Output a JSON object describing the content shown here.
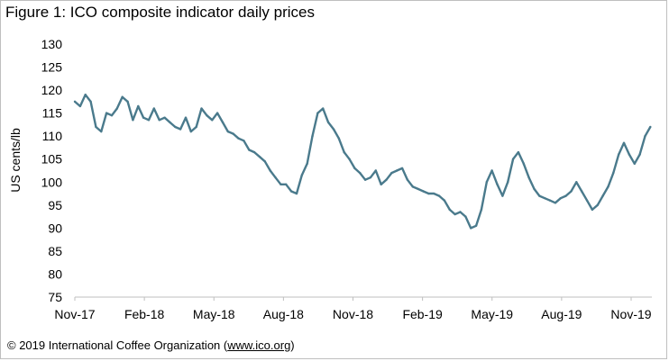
{
  "figure_title": "Figure 1: ICO composite indicator daily prices",
  "footer": {
    "prefix": "© 2019 International Coffee Organization (",
    "link": "www.ico.org",
    "suffix": ")"
  },
  "chart_data": {
    "type": "line",
    "title": "Figure 1: ICO composite indicator daily prices",
    "xlabel": "",
    "ylabel": "US cents/lb",
    "ylim": [
      75,
      130
    ],
    "yticks": [
      75,
      80,
      85,
      90,
      95,
      100,
      105,
      110,
      115,
      120,
      125,
      130
    ],
    "xtick_labels": [
      "Nov-17",
      "Feb-18",
      "May-18",
      "Aug-18",
      "Nov-18",
      "Feb-19",
      "May-19",
      "Aug-19",
      "Nov-19"
    ],
    "x_range": [
      "2017-11-01",
      "2019-12-06"
    ],
    "grid": false,
    "legend": "none",
    "color": "#4a7a8c",
    "series": [
      {
        "x": [
          "2017-11-01",
          "2017-11-08",
          "2017-11-15",
          "2017-11-22",
          "2017-11-29",
          "2017-12-06",
          "2017-12-13",
          "2017-12-20",
          "2017-12-27",
          "2018-01-03",
          "2018-01-10",
          "2018-01-17",
          "2018-01-24",
          "2018-01-31",
          "2018-02-07",
          "2018-02-14",
          "2018-02-21",
          "2018-02-28",
          "2018-03-07",
          "2018-03-14",
          "2018-03-21",
          "2018-03-28",
          "2018-04-04",
          "2018-04-11",
          "2018-04-18",
          "2018-04-25",
          "2018-05-02",
          "2018-05-09",
          "2018-05-16",
          "2018-05-23",
          "2018-05-30",
          "2018-06-06",
          "2018-06-13",
          "2018-06-20",
          "2018-06-27",
          "2018-07-04",
          "2018-07-11",
          "2018-07-18",
          "2018-07-25",
          "2018-08-01",
          "2018-08-08",
          "2018-08-15",
          "2018-08-22",
          "2018-08-29",
          "2018-09-05",
          "2018-09-12",
          "2018-09-19",
          "2018-09-26",
          "2018-10-03",
          "2018-10-10",
          "2018-10-17",
          "2018-10-24",
          "2018-10-31",
          "2018-11-07",
          "2018-11-14",
          "2018-11-21",
          "2018-11-28",
          "2018-12-05",
          "2018-12-12",
          "2018-12-19",
          "2018-12-26",
          "2019-01-02",
          "2019-01-09",
          "2019-01-16",
          "2019-01-23",
          "2019-01-30",
          "2019-02-06",
          "2019-02-13",
          "2019-02-20",
          "2019-02-27",
          "2019-03-06",
          "2019-03-13",
          "2019-03-20",
          "2019-03-27",
          "2019-04-03",
          "2019-04-10",
          "2019-04-17",
          "2019-04-24",
          "2019-05-01",
          "2019-05-08",
          "2019-05-15",
          "2019-05-22",
          "2019-05-29",
          "2019-06-05",
          "2019-06-12",
          "2019-06-19",
          "2019-06-26",
          "2019-07-03",
          "2019-07-10",
          "2019-07-17",
          "2019-07-24",
          "2019-07-31",
          "2019-08-07",
          "2019-08-14",
          "2019-08-21",
          "2019-08-28",
          "2019-09-04",
          "2019-09-11",
          "2019-09-18",
          "2019-09-25",
          "2019-10-02",
          "2019-10-09",
          "2019-10-16",
          "2019-10-23",
          "2019-10-30",
          "2019-11-06",
          "2019-11-13",
          "2019-11-20",
          "2019-11-27",
          "2019-12-04"
        ],
        "values": [
          117.5,
          116.5,
          119,
          117.5,
          112,
          111,
          115,
          114.5,
          116,
          118.5,
          117.5,
          113.5,
          116.5,
          114,
          113.5,
          116,
          113.5,
          114,
          113,
          112,
          111.5,
          114,
          111,
          112,
          116,
          114.5,
          113.5,
          115,
          113,
          111,
          110.5,
          109.5,
          109,
          107,
          106.5,
          105.5,
          104.5,
          102.5,
          101,
          99.5,
          99.5,
          98,
          97.5,
          101.5,
          104,
          110,
          115,
          116,
          113,
          111.5,
          109.5,
          106.5,
          105,
          103,
          102,
          100.5,
          101,
          102.5,
          99.5,
          100.5,
          102,
          102.5,
          103,
          100.5,
          99,
          98.5,
          98,
          97.5,
          97.5,
          97,
          96,
          94,
          93,
          93.5,
          92.5,
          90,
          90.5,
          94,
          100,
          102.5,
          99.5,
          97,
          100,
          105,
          106.5,
          104,
          101,
          98.5,
          97,
          96.5,
          96,
          95.5,
          96.5,
          97,
          98,
          100,
          98,
          96,
          94,
          95,
          97,
          99,
          102,
          106,
          108.5,
          106,
          104,
          106,
          110,
          112
        ]
      }
    ]
  }
}
